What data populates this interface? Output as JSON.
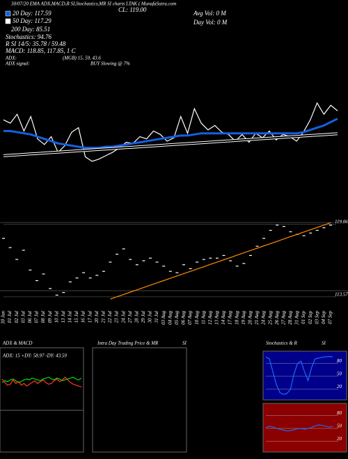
{
  "header": {
    "top": "30/07/20 EMA ADX,MACD,R SI,Stochastics,MR SI charts LTAK ( MunafaSutra.com",
    "close": "CL: 119.00",
    "avg_vol": "Avg Vol: 0   M",
    "day_vol": "Day Vol: 0   M",
    "day200": "200 Day: 85.51",
    "stochastics": "Stochastics: 94.76",
    "rsi": "R    SI 14/5: 35.78 / 59.48",
    "macd": "MACD: 118.85, 117.85, 1 C",
    "adx": "ADX:",
    "adx_values": "(MGB) 15, 59, 43.6",
    "adx_signal": "ADX  signal:",
    "signal": "BUY Slowing @ 7%",
    "intraday": "Intra  Day Trading Price  & MR",
    "intraday_si": "SI"
  },
  "chart_data": [
    {
      "type": "line",
      "ylim": [
        113,
        121
      ],
      "series": [
        {
          "color": "#ffffff",
          "values": [
            118.5,
            118.2,
            119.0,
            117.5,
            118.8,
            116.8,
            116.3,
            117.0,
            115.6,
            116.2,
            117.4,
            117.8,
            115.2,
            114.8,
            115.0,
            115.3,
            115.6,
            116.0,
            116.5,
            116.4,
            117.0,
            116.8,
            117.5,
            117.2,
            116.6,
            116.9,
            118.8,
            117.3,
            119.5,
            118.2,
            117.6,
            118.0,
            117.4,
            117.2,
            116.6,
            117.2,
            116.5,
            117.3,
            116.9,
            117.5,
            116.7,
            117.2,
            117.0,
            116.6,
            117.4,
            118.5,
            120.0,
            119.0,
            119.8,
            119.3
          ]
        },
        {
          "name": "20 Day: 117.59",
          "color": "#1560e0",
          "values": [
            117.5,
            117.5,
            117.4,
            117.3,
            117.2,
            117.0,
            116.8,
            116.6,
            116.4,
            116.3,
            116.2,
            116.1,
            116.0,
            116.0,
            116.0,
            116.1,
            116.1,
            116.2,
            116.3,
            116.4,
            116.5,
            116.6,
            116.7,
            116.8,
            116.9,
            117.0,
            117.1,
            117.1,
            117.2,
            117.3,
            117.3,
            117.3,
            117.3,
            117.3,
            117.3,
            117.3,
            117.3,
            117.3,
            117.3,
            117.3,
            117.3,
            117.3,
            117.3,
            117.3,
            117.4,
            117.6,
            117.8,
            118.0,
            118.3,
            118.6
          ]
        },
        {
          "name": "50 Day: 117.29",
          "color": "#ffffff",
          "values": [
            115.3,
            115.34,
            115.38,
            115.42,
            115.46,
            115.5,
            115.54,
            115.58,
            115.62,
            115.66,
            115.7,
            115.74,
            115.78,
            115.82,
            115.86,
            115.9,
            115.94,
            115.98,
            116.02,
            116.06,
            116.1,
            116.14,
            116.18,
            116.22,
            116.26,
            116.3,
            116.34,
            116.38,
            116.42,
            116.46,
            116.5,
            116.54,
            116.58,
            116.62,
            116.66,
            116.7,
            116.74,
            116.78,
            116.82,
            116.86,
            116.9,
            116.94,
            116.98,
            117.02,
            117.06,
            117.1,
            117.14,
            117.18,
            117.22,
            117.26
          ]
        }
      ]
    },
    {
      "type": "line",
      "ylim": [
        113.3,
        119.3
      ],
      "yticks": [
        119.06,
        113.57
      ],
      "categories": [
        "30 Jun",
        "01 Jul",
        "02 Jul",
        "03 Jul",
        "06 Jul",
        "07 Jul",
        "08 Jul",
        "09 Jul",
        "10 Jul",
        "13 Jul",
        "14 Jul",
        "15 Jul",
        "16 Jul",
        "17 Jul",
        "20 Jul",
        "21 Jul",
        "22 Jul",
        "23 Jul",
        "24 Jul",
        "27 Jul",
        "28 Jul",
        "29 Jul",
        "30 Jul",
        "31 Jul",
        "03 Aug",
        "04 Aug",
        "05 Aug",
        "06 Aug",
        "07 Aug",
        "10 Aug",
        "11 Aug",
        "12 Aug",
        "13 Aug",
        "14 Aug",
        "17 Aug",
        "18 Aug",
        "19 Aug",
        "20 Aug",
        "21 Aug",
        "24 Aug",
        "25 Aug",
        "26 Aug",
        "27 Aug",
        "28 Aug",
        "31 Aug",
        "01 Sep",
        "02 Sep",
        "03 Sep",
        "04 Sep",
        "07 Sep"
      ],
      "series": [
        {
          "type": "scatter",
          "color": "#ffffff",
          "values": [
            118.0,
            117.3,
            116.4,
            117.1,
            115.6,
            114.8,
            115.3,
            114.2,
            113.7,
            113.9,
            114.7,
            115.0,
            115.4,
            115.0,
            115.2,
            115.5,
            116.2,
            116.8,
            117.2,
            116.4,
            116.0,
            116.3,
            116.5,
            116.2,
            115.9,
            115.5,
            115.4,
            116.0,
            115.7,
            116.2,
            116.4,
            116.5,
            116.5,
            116.7,
            116.3,
            115.9,
            116.1,
            116.7,
            117.4,
            118.0,
            118.6,
            119.0,
            118.9,
            118.5,
            118.3,
            118.2,
            118.4,
            118.6,
            118.8,
            119.0
          ]
        },
        {
          "type": "line",
          "color": "#ff8c00",
          "values": [
            null,
            null,
            null,
            null,
            null,
            null,
            null,
            null,
            null,
            null,
            null,
            null,
            null,
            null,
            null,
            null,
            113.4,
            113.58,
            113.75,
            113.93,
            114.1,
            114.28,
            114.45,
            114.63,
            114.8,
            114.98,
            115.15,
            115.33,
            115.5,
            115.68,
            115.85,
            116.03,
            116.2,
            116.38,
            116.55,
            116.73,
            116.9,
            117.08,
            117.25,
            117.43,
            117.6,
            117.78,
            117.95,
            118.13,
            118.3,
            118.48,
            118.65,
            118.83,
            119.0,
            119.18
          ]
        }
      ]
    },
    {
      "type": "line",
      "title": "ADX  & MACD",
      "label": "ADX: 15 +DY: 58.97 -DY: 43.59",
      "ylim": [
        0,
        60
      ],
      "series": [
        {
          "color": "#00dd00",
          "values": [
            30,
            32,
            31,
            33,
            34,
            32,
            30,
            31,
            33,
            34,
            33,
            35,
            34,
            33,
            32,
            34,
            35,
            36,
            34,
            33,
            35,
            34,
            32,
            33,
            34,
            35,
            36,
            34,
            33,
            35
          ]
        },
        {
          "color": "#ff3b1f",
          "values": [
            34,
            30,
            27,
            28,
            33,
            29,
            31,
            27,
            29,
            26,
            28,
            30,
            32,
            29,
            31,
            33,
            30,
            28,
            29,
            32,
            34,
            31,
            33,
            36,
            33,
            30,
            28,
            27,
            26,
            25
          ]
        }
      ]
    },
    {
      "type": "line",
      "title": "Stochastics & R",
      "title2": "SI",
      "ylim": [
        0,
        100
      ],
      "yticks": [
        80,
        50,
        20
      ],
      "series": [
        {
          "color": "#1a6aff",
          "values": [
            95,
            90,
            60,
            30,
            12,
            8,
            10,
            20,
            55,
            80,
            85,
            60,
            40,
            70,
            90,
            92,
            94,
            95,
            96,
            95
          ]
        }
      ]
    },
    {
      "type": "line",
      "ylim": [
        0,
        100
      ],
      "yticks": [
        80,
        50,
        20
      ],
      "series": [
        {
          "color": "#1a6aff",
          "values": [
            52,
            55,
            53,
            50,
            48,
            46,
            44,
            45,
            47,
            49,
            50,
            48,
            50,
            52,
            56,
            58,
            57,
            55,
            53,
            55
          ]
        }
      ]
    }
  ]
}
